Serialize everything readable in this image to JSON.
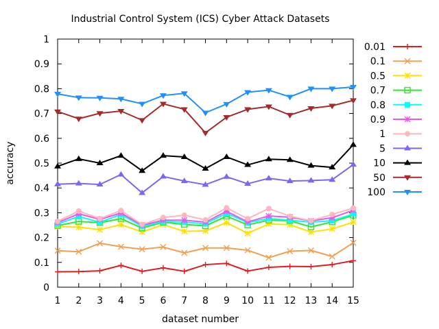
{
  "chart_data": {
    "type": "line",
    "title": "Industrial Control System (ICS) Cyber Attack Datasets",
    "xlabel": "dataset number",
    "ylabel": "accuracy",
    "xlim": [
      1,
      15
    ],
    "ylim": [
      0,
      1
    ],
    "xticks": [
      "1",
      "2",
      "3",
      "4",
      "5",
      "6",
      "7",
      "8",
      "9",
      "10",
      "11",
      "12",
      "13",
      "14",
      "15"
    ],
    "yticks": [
      "0",
      "0.1",
      "0.2",
      "0.3",
      "0.4",
      "0.5",
      "0.6",
      "0.7",
      "0.8",
      "0.9",
      "1"
    ],
    "grid": false,
    "legend_position": "right",
    "x": [
      1,
      2,
      3,
      4,
      5,
      6,
      7,
      8,
      9,
      10,
      11,
      12,
      13,
      14,
      15
    ],
    "series": [
      {
        "name": "0.01",
        "color": "#e41a1c",
        "marker": "plus",
        "values": [
          0.062,
          0.063,
          0.066,
          0.088,
          0.064,
          0.078,
          0.064,
          0.091,
          0.096,
          0.065,
          0.08,
          0.084,
          0.083,
          0.091,
          0.107
        ]
      },
      {
        "name": "0.1",
        "color": "#f0a050",
        "marker": "cross",
        "values": [
          0.147,
          0.143,
          0.177,
          0.163,
          0.153,
          0.162,
          0.138,
          0.158,
          0.158,
          0.149,
          0.119,
          0.145,
          0.148,
          0.124,
          0.179
        ]
      },
      {
        "name": "0.5",
        "color": "#ffe000",
        "marker": "star",
        "values": [
          0.244,
          0.242,
          0.232,
          0.252,
          0.223,
          0.252,
          0.225,
          0.227,
          0.26,
          0.217,
          0.255,
          0.252,
          0.222,
          0.235,
          0.262
        ]
      },
      {
        "name": "0.7",
        "color": "#2ee82e",
        "marker": "square",
        "values": [
          0.248,
          0.265,
          0.26,
          0.276,
          0.238,
          0.262,
          0.253,
          0.247,
          0.286,
          0.251,
          0.27,
          0.268,
          0.243,
          0.263,
          0.29
        ]
      },
      {
        "name": "0.8",
        "color": "#00ffff",
        "marker": "square-filled",
        "values": [
          0.255,
          0.285,
          0.262,
          0.293,
          0.245,
          0.265,
          0.262,
          0.256,
          0.298,
          0.26,
          0.277,
          0.27,
          0.262,
          0.268,
          0.295
        ]
      },
      {
        "name": "0.9",
        "color": "#ee55ee",
        "marker": "star",
        "values": [
          0.26,
          0.296,
          0.273,
          0.299,
          0.25,
          0.27,
          0.27,
          0.262,
          0.306,
          0.263,
          0.287,
          0.282,
          0.267,
          0.28,
          0.31
        ]
      },
      {
        "name": "1",
        "color": "#ffb6c1",
        "marker": "circle",
        "values": [
          0.265,
          0.307,
          0.276,
          0.309,
          0.253,
          0.281,
          0.29,
          0.271,
          0.32,
          0.276,
          0.317,
          0.286,
          0.268,
          0.293,
          0.319
        ]
      },
      {
        "name": "5",
        "color": "#7b68ee",
        "marker": "triangle",
        "values": [
          0.415,
          0.418,
          0.414,
          0.454,
          0.38,
          0.446,
          0.428,
          0.413,
          0.445,
          0.417,
          0.439,
          0.428,
          0.43,
          0.433,
          0.494
        ]
      },
      {
        "name": "10",
        "color": "#000000",
        "marker": "triangle",
        "values": [
          0.487,
          0.517,
          0.5,
          0.53,
          0.469,
          0.53,
          0.525,
          0.478,
          0.525,
          0.493,
          0.516,
          0.513,
          0.49,
          0.483,
          0.574
        ]
      },
      {
        "name": "50",
        "color": "#a52a2a",
        "marker": "triangle-down",
        "values": [
          0.708,
          0.679,
          0.701,
          0.71,
          0.673,
          0.739,
          0.717,
          0.622,
          0.685,
          0.717,
          0.728,
          0.694,
          0.721,
          0.731,
          0.753
        ]
      },
      {
        "name": "100",
        "color": "#1e90ff",
        "marker": "triangle-down",
        "values": [
          0.779,
          0.764,
          0.763,
          0.759,
          0.739,
          0.773,
          0.781,
          0.703,
          0.738,
          0.786,
          0.794,
          0.767,
          0.8,
          0.8,
          0.807
        ]
      }
    ]
  }
}
